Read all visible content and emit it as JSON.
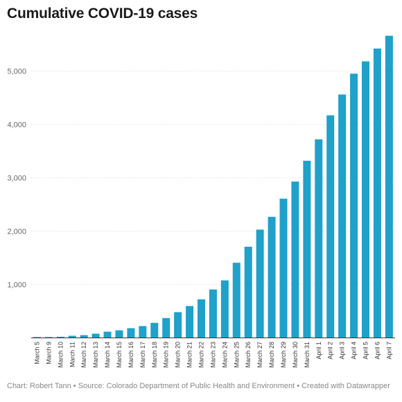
{
  "chart_data": {
    "type": "bar",
    "title": "Cumulative COVID-19 cases",
    "xlabel": "",
    "ylabel": "",
    "categories": [
      "March 5",
      "March 9",
      "March 10",
      "March 11",
      "March 12",
      "March 13",
      "March 14",
      "March 15",
      "March 16",
      "March 17",
      "March 18",
      "March 19",
      "March 20",
      "March 21",
      "March 22",
      "March 23",
      "March 24",
      "March 25",
      "March 26",
      "March 27",
      "March 28",
      "March 29",
      "March 30",
      "March 31",
      "April 1",
      "April 2",
      "April 3",
      "April 4",
      "April 5",
      "April 6",
      "April 7"
    ],
    "values": [
      2,
      8,
      15,
      33,
      45,
      72,
      110,
      135,
      175,
      215,
      275,
      365,
      475,
      590,
      715,
      900,
      1070,
      1400,
      1700,
      2020,
      2260,
      2600,
      2920,
      3310,
      3710,
      4160,
      4550,
      4940,
      5170,
      5410,
      5650
    ],
    "ylim": [
      0,
      5800
    ],
    "yticks": [
      1000,
      2000,
      3000,
      4000,
      5000
    ],
    "ytick_labels": [
      "1,000",
      "2,000",
      "3,000",
      "4,000",
      "5,000"
    ],
    "grid": true,
    "bar_color": "#1fa1c9"
  },
  "footer": {
    "credit": "Chart: Robert Tann • Source: Colorado Department of Public Health and Environment • Created with Datawrapper"
  }
}
